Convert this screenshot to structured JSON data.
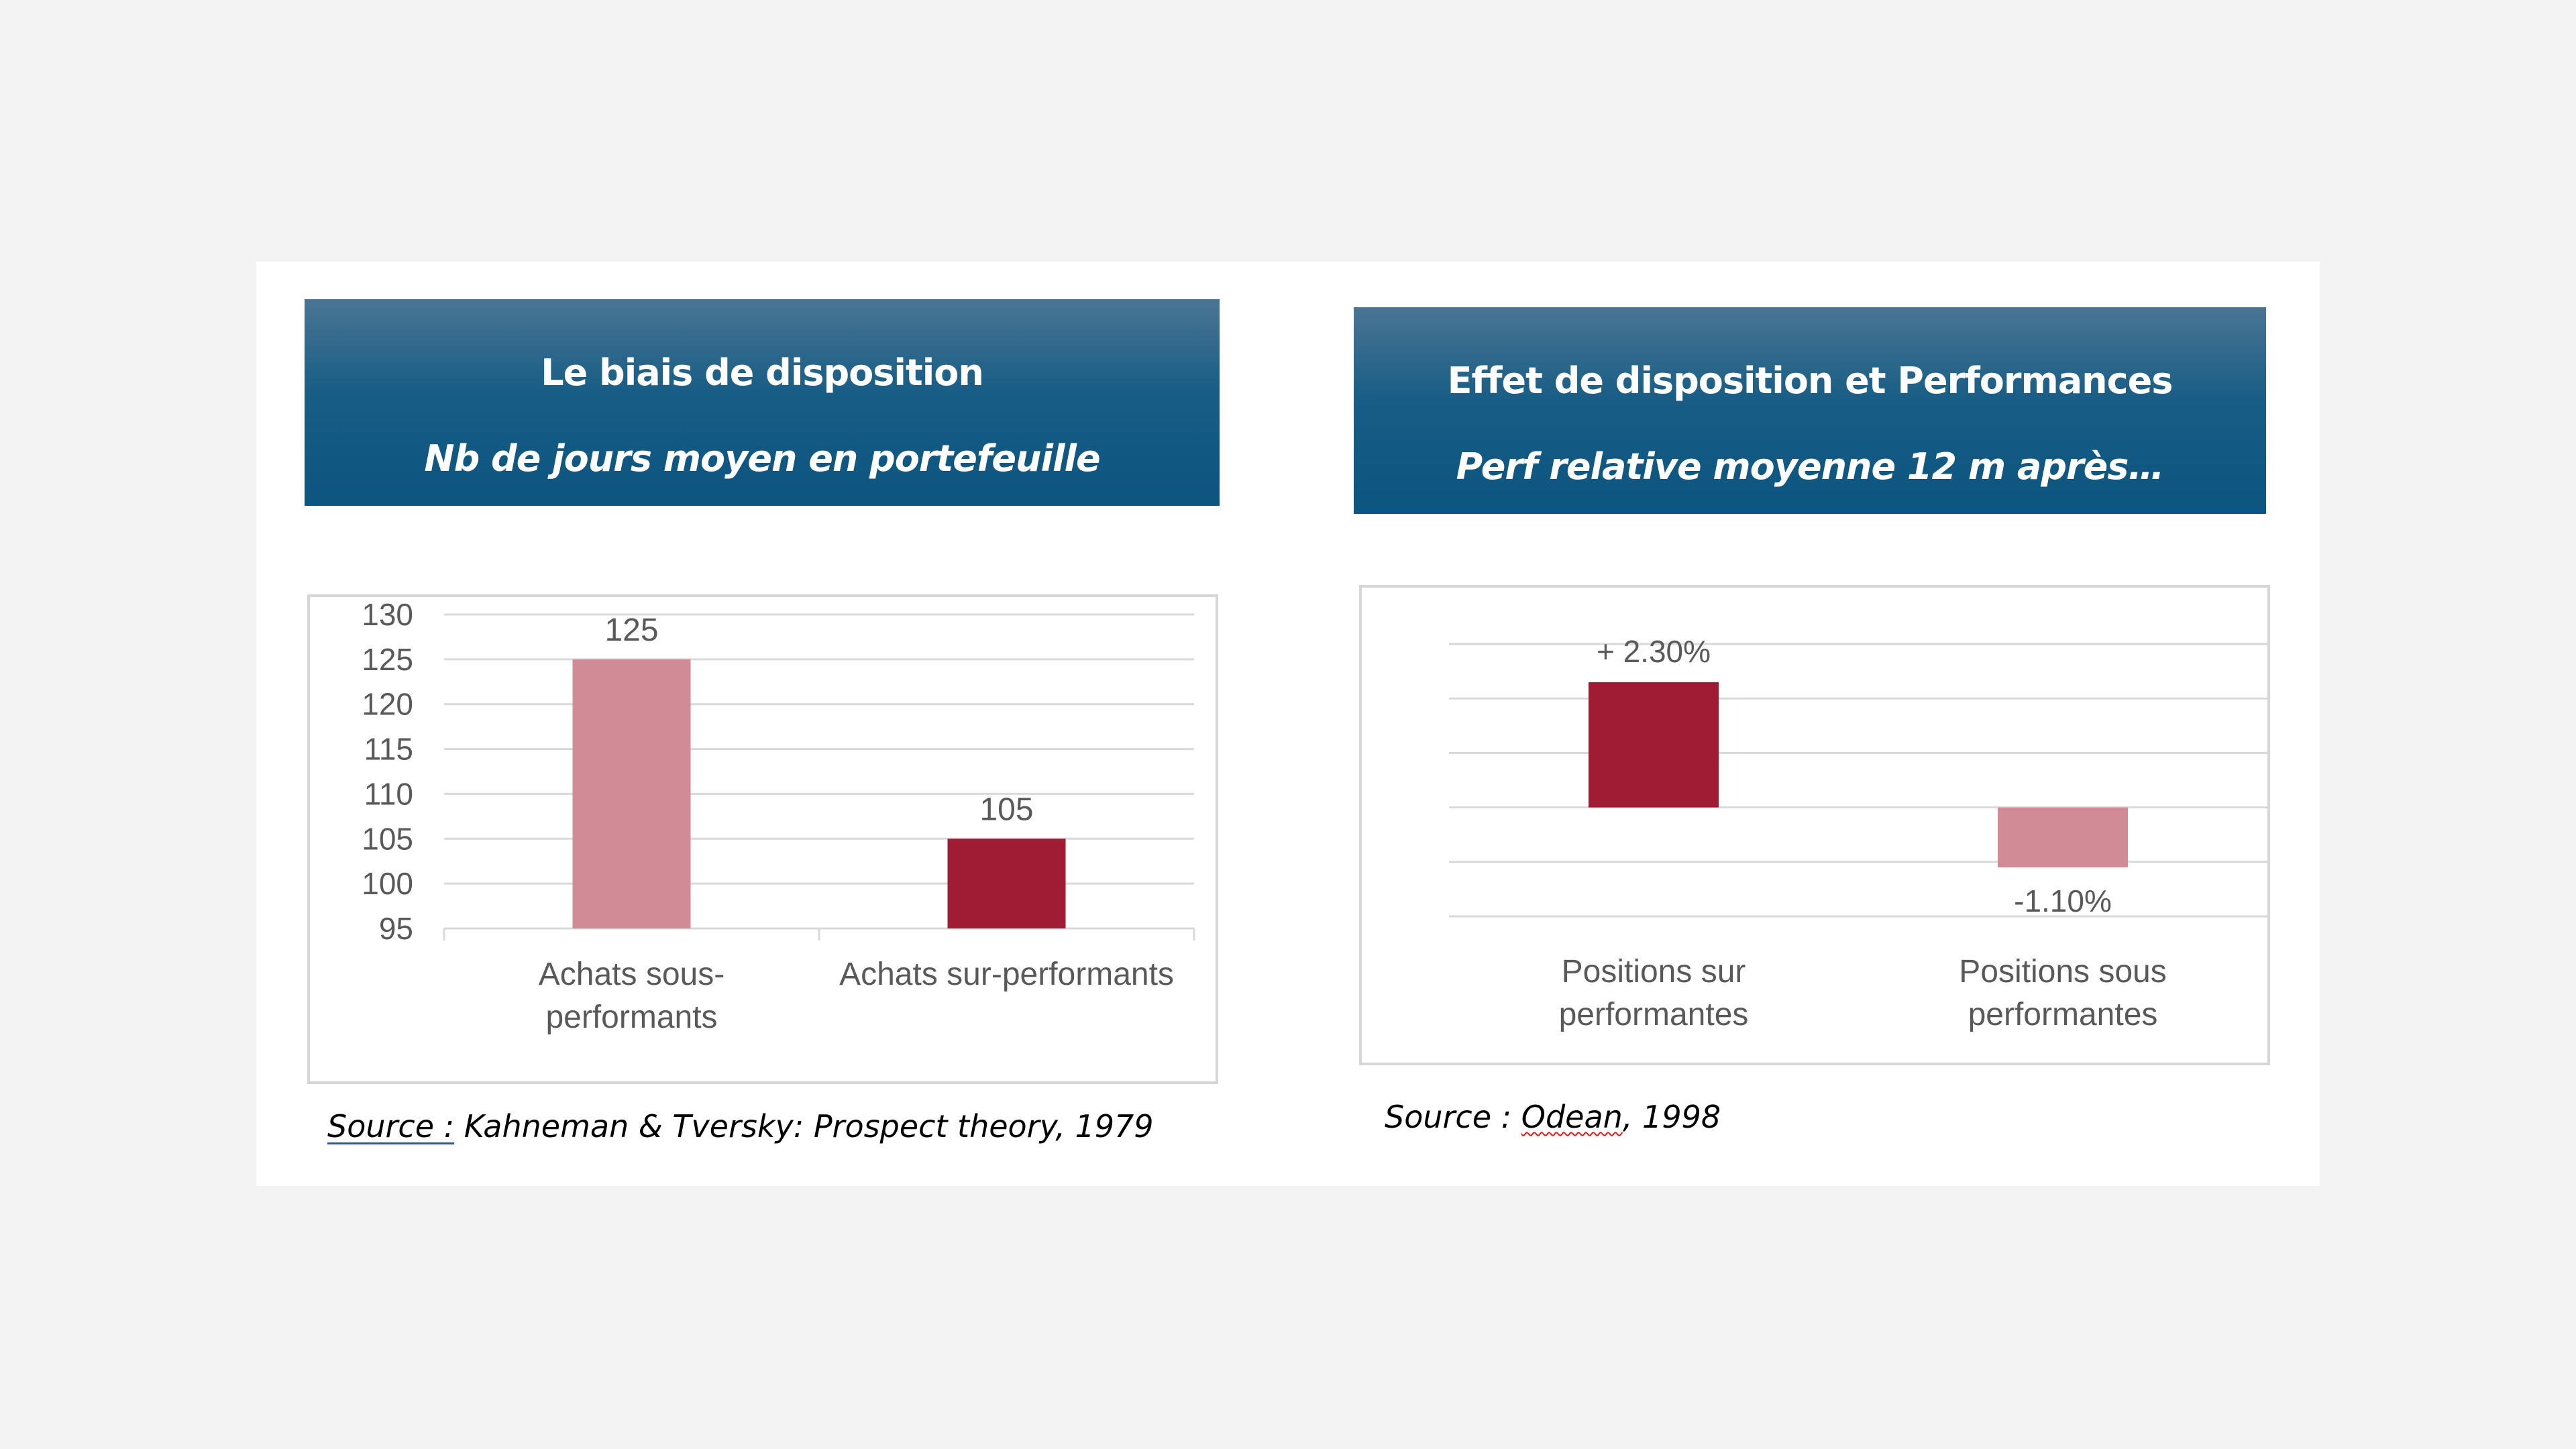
{
  "left_panel": {
    "title": "Le biais de disposition",
    "subtitle": "Nb de jours moyen en portefeuille",
    "source_label": "Source :",
    "source_text": " Kahneman & Tversky: Prospect theory, 1979"
  },
  "right_panel": {
    "title": "Effet de disposition et Performances",
    "subtitle": "Perf relative moyenne 12 m après…",
    "source_prefix": "Source : ",
    "source_author": "Odean",
    "source_year": ", 1998"
  },
  "colors": {
    "banner_top": "#4a7594",
    "banner_bottom": "#0b5580",
    "bar_light": "#d08b96",
    "bar_dark": "#a01c35",
    "gridline": "#d9d9d9",
    "text": "#595959"
  },
  "chart_data": [
    {
      "type": "bar",
      "categories": [
        [
          "Achats sous-",
          "performants"
        ],
        [
          "Achats sur-performants"
        ]
      ],
      "values": [
        125,
        105
      ],
      "data_labels": [
        "125",
        "105"
      ],
      "bar_colors": [
        "#d08b96",
        "#a01c35"
      ],
      "ylim": [
        95,
        130
      ],
      "yticks": [
        130,
        125,
        120,
        115,
        110,
        105,
        100,
        95
      ],
      "grid": true,
      "legend": "none"
    },
    {
      "type": "bar",
      "categories": [
        [
          "Positions sur",
          "performantes"
        ],
        [
          "Positions sous",
          "performantes"
        ]
      ],
      "values": [
        2.3,
        -1.1
      ],
      "data_labels": [
        "+ 2.30%",
        "-1.10%"
      ],
      "bar_colors": [
        "#a01c35",
        "#d08b96"
      ],
      "ylim": [
        -2,
        3
      ],
      "grid": true,
      "y_axis_labels": false,
      "legend": "none"
    }
  ]
}
